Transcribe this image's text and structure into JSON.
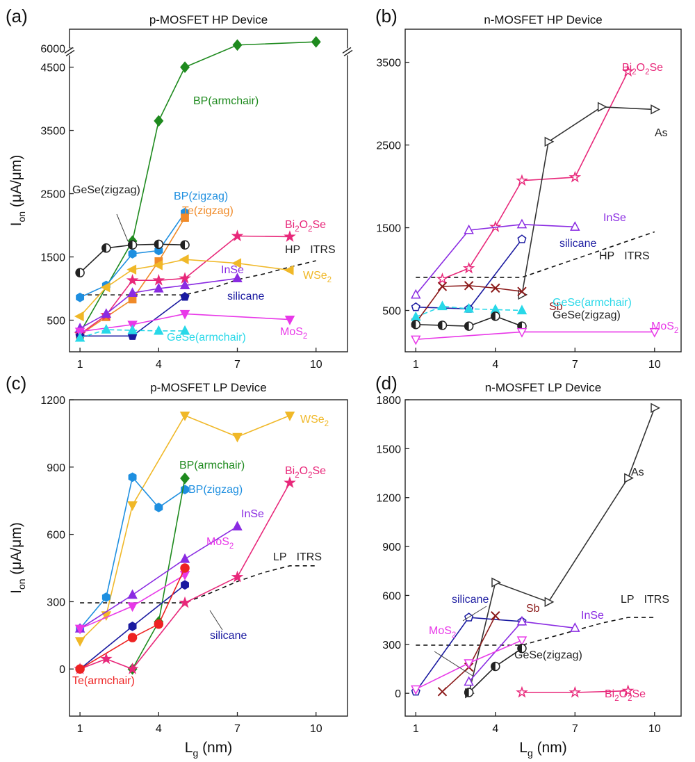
{
  "figure": {
    "ylabel_main": "I",
    "ylabel_sub": "on",
    "ylabel_unit": "(μA/μm)",
    "xlabel_main": "L",
    "xlabel_sub": "g",
    "xlabel_unit": "(nm)"
  },
  "colors": {
    "green": "#1e8a1e",
    "blue": "#1e8fe0",
    "orange": "#f08a28",
    "pink": "#e8287a",
    "purple": "#8a2be2",
    "yellow": "#f0b828",
    "navy": "#1a1aa0",
    "magenta": "#e838e8",
    "cyan": "#28d8e8",
    "black": "#222222",
    "gray": "#333333",
    "darkred": "#8b1a1a",
    "red": "#ee2222",
    "teal": "#28c8d8"
  },
  "chart_data": [
    {
      "panel_label": "(a)",
      "title": "p-MOSFET HP Device",
      "type": "line",
      "xlim": [
        0.6,
        11.2
      ],
      "xticks": [
        1,
        4,
        7,
        10
      ],
      "ylim": [
        0,
        6300
      ],
      "ybreak": [
        4700,
        5900
      ],
      "yticks": [
        500,
        1500,
        2500,
        3500,
        4500,
        6000
      ],
      "itrs_label": "HP ITRS",
      "itrs_line": {
        "x": [
          1,
          2,
          3,
          4,
          5,
          6,
          7,
          8,
          9,
          10
        ],
        "y": [
          900,
          900,
          900,
          900,
          900,
          1000,
          1140,
          1230,
          1340,
          1440
        ]
      },
      "series": [
        {
          "name": "BP(armchair)",
          "color": "green",
          "marker": "diamond",
          "fill": "full",
          "x": [
            1,
            3,
            4,
            5,
            7,
            10
          ],
          "y": [
            300,
            1750,
            3650,
            4500,
            6050,
            6100
          ]
        },
        {
          "name": "BP(zigzag)",
          "color": "blue",
          "marker": "hexagon",
          "fill": "full",
          "x": [
            1,
            2,
            3,
            4,
            5
          ],
          "y": [
            860,
            1050,
            1550,
            1600,
            2200
          ]
        },
        {
          "name": "Te(zigzag)",
          "color": "orange",
          "marker": "square",
          "fill": "full",
          "x": [
            1,
            2,
            3,
            4,
            5
          ],
          "y": [
            270,
            550,
            830,
            1430,
            2120
          ]
        },
        {
          "name": "GeSe(zigzag)",
          "color": "black",
          "marker": "circle",
          "fill": "half",
          "x": [
            1,
            2,
            3,
            4,
            5
          ],
          "y": [
            1250,
            1640,
            1690,
            1700,
            1690
          ]
        },
        {
          "name": "Bi2O2Se",
          "color": "pink",
          "marker": "star",
          "fill": "full",
          "x": [
            1,
            2,
            3,
            4,
            5,
            7,
            9
          ],
          "y": [
            280,
            580,
            1130,
            1130,
            1160,
            1830,
            1820
          ]
        },
        {
          "name": "WSe2",
          "color": "yellow",
          "marker": "triangle-left",
          "fill": "full",
          "x": [
            1,
            2,
            3,
            4,
            5,
            7,
            9
          ],
          "y": [
            560,
            1020,
            1300,
            1370,
            1460,
            1400,
            1290
          ]
        },
        {
          "name": "InSe",
          "color": "purple",
          "marker": "triangle-up",
          "fill": "full",
          "x": [
            1,
            2,
            3,
            4,
            5,
            7
          ],
          "y": [
            370,
            600,
            930,
            1000,
            1050,
            1160
          ]
        },
        {
          "name": "silicane",
          "color": "navy",
          "marker": "pentagon",
          "fill": "full",
          "x": [
            1,
            3,
            5
          ],
          "y": [
            250,
            250,
            870
          ]
        },
        {
          "name": "MoS2",
          "color": "magenta",
          "marker": "triangle-down",
          "fill": "full",
          "x": [
            1,
            3,
            5,
            9
          ],
          "y": [
            320,
            430,
            600,
            510
          ]
        },
        {
          "name": "GeSe(armchair)",
          "color": "cyan",
          "marker": "triangle-up",
          "fill": "full",
          "dashed": true,
          "x": [
            1,
            2,
            3,
            4,
            5
          ],
          "y": [
            220,
            350,
            340,
            330,
            330
          ]
        }
      ],
      "labels": [
        {
          "id": "bp-armchair",
          "text": "BP(armchair)",
          "color": "green"
        },
        {
          "id": "gese-zigzag",
          "text": "GeSe(zigzag)",
          "color": "black"
        },
        {
          "id": "bp-zigzag",
          "text": "BP(zigzag)",
          "color": "blue"
        },
        {
          "id": "te-zigzag",
          "text": "Te(zigzag)",
          "color": "orange"
        },
        {
          "id": "bi2o2se",
          "text": "Bi2O2Se",
          "color": "pink"
        },
        {
          "id": "hp-itrs",
          "text": "HP ITRS",
          "color": "black"
        },
        {
          "id": "wse2",
          "text": "WSe2",
          "color": "yellow"
        },
        {
          "id": "inse",
          "text": "InSe",
          "color": "purple"
        },
        {
          "id": "silicane",
          "text": "silicane",
          "color": "navy"
        },
        {
          "id": "mos2",
          "text": "MoS2",
          "color": "magenta"
        },
        {
          "id": "gese-armchair",
          "text": "GeSe(armchair)",
          "color": "cyan"
        }
      ]
    },
    {
      "panel_label": "(b)",
      "title": "n-MOSFET HP Device",
      "type": "line",
      "xlim": [
        0.6,
        11.0
      ],
      "xticks": [
        1,
        4,
        7,
        10
      ],
      "ylim": [
        0,
        3900
      ],
      "yticks": [
        500,
        1500,
        2500,
        3500
      ],
      "itrs_label": "HP ITRS",
      "itrs_line": {
        "x": [
          1,
          2,
          3,
          4,
          5,
          6,
          7,
          8,
          9,
          10
        ],
        "y": [
          900,
          900,
          900,
          900,
          900,
          1010,
          1120,
          1230,
          1340,
          1450
        ]
      },
      "series": [
        {
          "name": "Bi2O2Se",
          "color": "pink",
          "marker": "star",
          "fill": "open",
          "x": [
            2,
            3,
            4,
            5,
            7,
            9
          ],
          "y": [
            880,
            1010,
            1510,
            2070,
            2110,
            3390
          ]
        },
        {
          "name": "As",
          "color": "gray",
          "marker": "triangle-right",
          "fill": "open",
          "x": [
            5,
            6,
            8,
            10
          ],
          "y": [
            690,
            2540,
            2960,
            2930
          ]
        },
        {
          "name": "InSe",
          "color": "purple",
          "marker": "triangle-up",
          "fill": "open",
          "x": [
            1,
            3,
            5,
            7
          ],
          "y": [
            690,
            1470,
            1540,
            1510
          ]
        },
        {
          "name": "silicane",
          "color": "navy",
          "marker": "pentagon",
          "fill": "open",
          "x": [
            1,
            3,
            5
          ],
          "y": [
            540,
            520,
            1360
          ]
        },
        {
          "name": "Sb",
          "color": "darkred",
          "marker": "x",
          "fill": "full",
          "x": [
            1,
            2,
            3,
            4,
            5
          ],
          "y": [
            350,
            790,
            800,
            770,
            730
          ]
        },
        {
          "name": "GeSe(armchair)",
          "color": "cyan",
          "marker": "triangle-up",
          "fill": "full",
          "dashed": true,
          "x": [
            1,
            2,
            3,
            4,
            5
          ],
          "y": [
            420,
            550,
            520,
            510,
            500
          ]
        },
        {
          "name": "GeSe(zigzag)",
          "color": "black",
          "marker": "circle",
          "fill": "half",
          "x": [
            1,
            2,
            3,
            4,
            5
          ],
          "y": [
            330,
            320,
            310,
            430,
            310
          ]
        },
        {
          "name": "MoS2",
          "color": "magenta",
          "marker": "triangle-down",
          "fill": "open",
          "x": [
            1,
            5,
            10
          ],
          "y": [
            150,
            240,
            240
          ]
        }
      ],
      "labels": [
        {
          "id": "bi2o2se",
          "text": "Bi2O2Se",
          "color": "pink"
        },
        {
          "id": "as",
          "text": "As",
          "color": "black"
        },
        {
          "id": "inse",
          "text": "InSe",
          "color": "purple"
        },
        {
          "id": "silicane",
          "text": "silicane",
          "color": "navy"
        },
        {
          "id": "hp-itrs",
          "text": "HP ITRS",
          "color": "black"
        },
        {
          "id": "sb",
          "text": "Sb",
          "color": "darkred"
        },
        {
          "id": "gese-armchair",
          "text": "GeSe(armchair)",
          "color": "cyan"
        },
        {
          "id": "gese-zigzag",
          "text": "GeSe(zigzag)",
          "color": "black"
        },
        {
          "id": "mos2",
          "text": "MoS2",
          "color": "magenta"
        }
      ]
    },
    {
      "panel_label": "(c)",
      "title": "p-MOSFET LP Device",
      "type": "line",
      "xlim": [
        0.6,
        11.2
      ],
      "xticks": [
        1,
        4,
        7,
        10
      ],
      "ylim": [
        -210,
        1200
      ],
      "yticks": [
        0,
        300,
        600,
        900,
        1200
      ],
      "itrs_label": "LP ITRS",
      "itrs_line": {
        "x": [
          1,
          2,
          3,
          4,
          5,
          6,
          7,
          8,
          9,
          10
        ],
        "y": [
          295,
          295,
          295,
          295,
          295,
          340,
          390,
          430,
          460,
          460
        ]
      },
      "series": [
        {
          "name": "WSe2",
          "color": "yellow",
          "marker": "triangle-down",
          "fill": "full",
          "x": [
            1,
            2,
            3,
            5,
            7,
            9
          ],
          "y": [
            125,
            240,
            730,
            1130,
            1035,
            1130
          ]
        },
        {
          "name": "BP(zigzag)",
          "color": "blue",
          "marker": "hexagon",
          "fill": "full",
          "x": [
            1,
            2,
            3,
            4,
            5
          ],
          "y": [
            180,
            320,
            855,
            720,
            800
          ]
        },
        {
          "name": "BP(armchair)",
          "color": "green",
          "marker": "diamond",
          "fill": "full",
          "x": [
            3,
            4,
            5
          ],
          "y": [
            0,
            210,
            850
          ]
        },
        {
          "name": "Bi2O2Se",
          "color": "pink",
          "marker": "star",
          "fill": "full",
          "x": [
            1,
            2,
            3,
            5,
            7,
            9
          ],
          "y": [
            0,
            45,
            0,
            295,
            410,
            830
          ]
        },
        {
          "name": "InSe",
          "color": "purple",
          "marker": "triangle-up",
          "fill": "full",
          "x": [
            1,
            3,
            5,
            7
          ],
          "y": [
            180,
            330,
            490,
            635
          ]
        },
        {
          "name": "MoS2",
          "color": "magenta",
          "marker": "triangle-down",
          "fill": "full",
          "x": [
            1,
            3,
            5
          ],
          "y": [
            180,
            280,
            420
          ]
        },
        {
          "name": "silicane",
          "color": "navy",
          "marker": "hexagon",
          "fill": "full",
          "x": [
            1,
            3,
            5
          ],
          "y": [
            0,
            190,
            375
          ]
        },
        {
          "name": "Te(armchair)",
          "color": "red",
          "marker": "circle",
          "fill": "full",
          "x": [
            1,
            3,
            4,
            5
          ],
          "y": [
            0,
            140,
            200,
            450
          ]
        }
      ],
      "labels": [
        {
          "id": "wse2",
          "text": "WSe2",
          "color": "yellow"
        },
        {
          "id": "bp-armchair",
          "text": "BP(armchair)",
          "color": "green"
        },
        {
          "id": "bp-zigzag",
          "text": "BP(zigzag)",
          "color": "blue"
        },
        {
          "id": "bi2o2se",
          "text": "Bi2O2Se",
          "color": "pink"
        },
        {
          "id": "inse",
          "text": "InSe",
          "color": "purple"
        },
        {
          "id": "lp-itrs",
          "text": "LP ITRS",
          "color": "black"
        },
        {
          "id": "mos2",
          "text": "MoS2",
          "color": "magenta"
        },
        {
          "id": "silicane",
          "text": "silicane",
          "color": "navy"
        },
        {
          "id": "te-armchair",
          "text": "Te(armchair)",
          "color": "red"
        }
      ]
    },
    {
      "panel_label": "(d)",
      "title": "n-MOSFET LP Device",
      "type": "line",
      "xlim": [
        0.6,
        11.0
      ],
      "xticks": [
        1,
        4,
        7,
        10
      ],
      "ylim": [
        -140,
        1800
      ],
      "yticks": [
        0,
        300,
        600,
        900,
        1200,
        1500,
        1800
      ],
      "itrs_label": "LP ITRS",
      "itrs_line": {
        "x": [
          1,
          2,
          3,
          4,
          5,
          6,
          7,
          8,
          9,
          10
        ],
        "y": [
          295,
          295,
          295,
          295,
          295,
          340,
          385,
          430,
          465,
          465
        ]
      },
      "series": [
        {
          "name": "As",
          "color": "gray",
          "marker": "triangle-right",
          "fill": "open",
          "x": [
            3,
            4,
            6,
            9,
            10
          ],
          "y": [
            0,
            680,
            560,
            1320,
            1750
          ]
        },
        {
          "name": "silicane",
          "color": "navy",
          "marker": "pentagon",
          "fill": "open",
          "x": [
            1,
            3,
            5
          ],
          "y": [
            10,
            465,
            440
          ]
        },
        {
          "name": "Sb",
          "color": "darkred",
          "marker": "x",
          "fill": "full",
          "x": [
            2,
            3,
            4
          ],
          "y": [
            10,
            160,
            475
          ]
        },
        {
          "name": "InSe",
          "color": "purple",
          "marker": "triangle-up",
          "fill": "open",
          "x": [
            3,
            5,
            7
          ],
          "y": [
            70,
            440,
            400
          ]
        },
        {
          "name": "MoS2",
          "color": "magenta",
          "marker": "triangle-down",
          "fill": "open",
          "x": [
            1,
            3,
            5
          ],
          "y": [
            25,
            185,
            325
          ]
        },
        {
          "name": "GeSe(zigzag)",
          "color": "black",
          "marker": "circle",
          "fill": "half",
          "x": [
            3,
            4,
            5
          ],
          "y": [
            5,
            165,
            275
          ]
        },
        {
          "name": "Bi2O2Se",
          "color": "pink",
          "marker": "star",
          "fill": "open",
          "x": [
            5,
            7,
            9
          ],
          "y": [
            5,
            5,
            15
          ]
        }
      ],
      "labels": [
        {
          "id": "as",
          "text": "As",
          "color": "black"
        },
        {
          "id": "silicane",
          "text": "silicane",
          "color": "navy"
        },
        {
          "id": "sb",
          "text": "Sb",
          "color": "darkred"
        },
        {
          "id": "lp-itrs",
          "text": "LP ITRS",
          "color": "black"
        },
        {
          "id": "inse",
          "text": "InSe",
          "color": "purple"
        },
        {
          "id": "mos2",
          "text": "MoS2",
          "color": "magenta"
        },
        {
          "id": "gese-zigzag",
          "text": "GeSe(zigzag)",
          "color": "black"
        },
        {
          "id": "bi2o2se",
          "text": "Bi2O2Se",
          "color": "pink"
        }
      ]
    }
  ]
}
